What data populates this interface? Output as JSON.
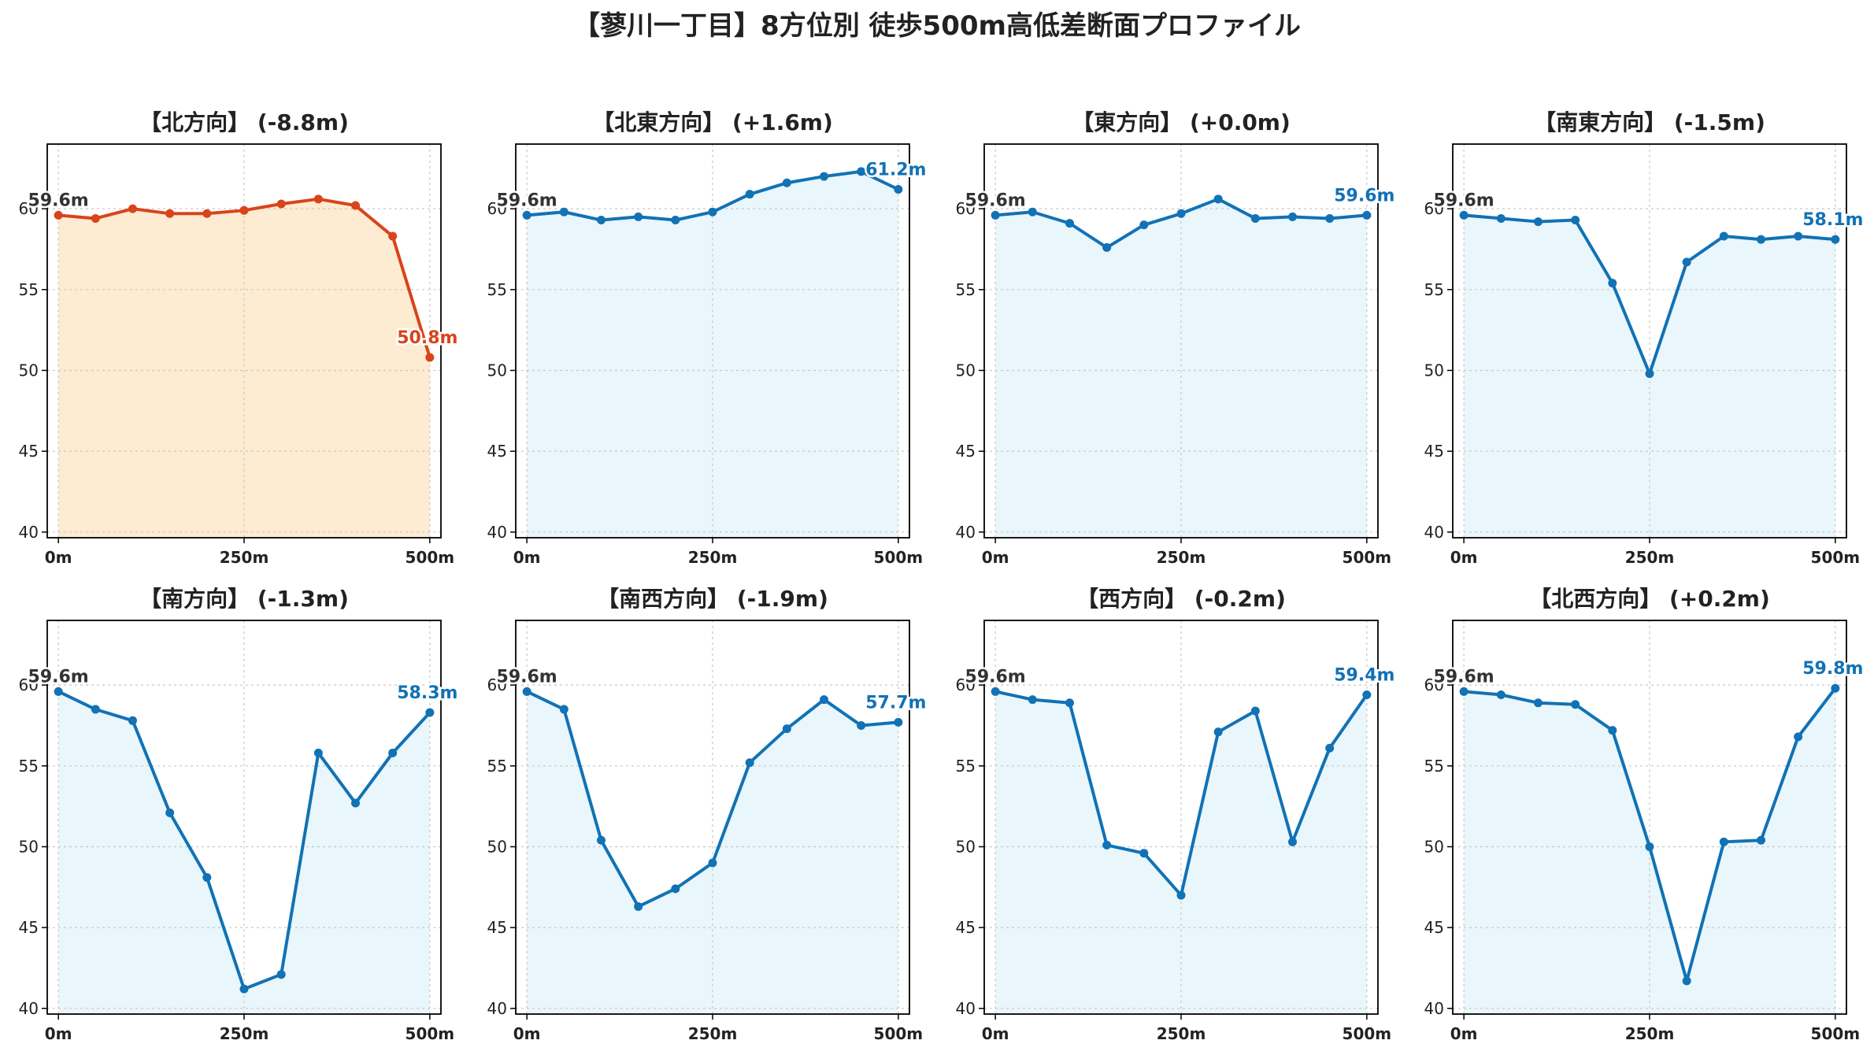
{
  "title": "【蓼川一丁目】8方位別 徒歩500m高低差断面プロファイル",
  "colors": {
    "highlight_line": "#d9441a",
    "highlight_fill": "#fdebd2",
    "normal_line": "#1172b5",
    "normal_fill": "#e9f6fc",
    "start_label": "#333333",
    "grid": "#c8c8c8"
  },
  "chart_data": [
    {
      "type": "area",
      "title": "【北方向】 (-8.8m)",
      "highlight": true,
      "x": [
        0,
        50,
        100,
        150,
        200,
        250,
        300,
        350,
        400,
        450,
        500
      ],
      "values": [
        59.6,
        59.4,
        60.0,
        59.7,
        59.7,
        59.9,
        60.3,
        60.6,
        60.2,
        58.3,
        50.8
      ],
      "start_label": "59.6m",
      "end_label": "50.8m",
      "xticks": [
        "0m",
        "250m",
        "500m"
      ],
      "ylim": [
        40,
        64
      ],
      "yticks": [
        "40",
        "45",
        "50",
        "55",
        "60"
      ],
      "grid": true
    },
    {
      "type": "area",
      "title": "【北東方向】 (+1.6m)",
      "highlight": false,
      "x": [
        0,
        50,
        100,
        150,
        200,
        250,
        300,
        350,
        400,
        450,
        500
      ],
      "values": [
        59.6,
        59.8,
        59.3,
        59.5,
        59.3,
        59.8,
        60.9,
        61.6,
        62.0,
        62.3,
        61.2
      ],
      "start_label": "59.6m",
      "end_label": "61.2m",
      "xticks": [
        "0m",
        "250m",
        "500m"
      ],
      "ylim": [
        40,
        64
      ],
      "yticks": [
        "40",
        "45",
        "50",
        "55",
        "60"
      ],
      "grid": true
    },
    {
      "type": "area",
      "title": "【東方向】 (+0.0m)",
      "highlight": false,
      "x": [
        0,
        50,
        100,
        150,
        200,
        250,
        300,
        350,
        400,
        450,
        500
      ],
      "values": [
        59.6,
        59.8,
        59.1,
        57.6,
        59.0,
        59.7,
        60.6,
        59.4,
        59.5,
        59.4,
        59.6
      ],
      "start_label": "59.6m",
      "end_label": "59.6m",
      "xticks": [
        "0m",
        "250m",
        "500m"
      ],
      "ylim": [
        40,
        64
      ],
      "yticks": [
        "40",
        "45",
        "50",
        "55",
        "60"
      ],
      "grid": true
    },
    {
      "type": "area",
      "title": "【南東方向】 (-1.5m)",
      "highlight": false,
      "x": [
        0,
        50,
        100,
        150,
        200,
        250,
        300,
        350,
        400,
        450,
        500
      ],
      "values": [
        59.6,
        59.4,
        59.2,
        59.3,
        55.4,
        49.8,
        56.7,
        58.3,
        58.1,
        58.3,
        58.1
      ],
      "start_label": "59.6m",
      "end_label": "58.1m",
      "xticks": [
        "0m",
        "250m",
        "500m"
      ],
      "ylim": [
        40,
        64
      ],
      "yticks": [
        "40",
        "45",
        "50",
        "55",
        "60"
      ],
      "grid": true
    },
    {
      "type": "area",
      "title": "【南方向】 (-1.3m)",
      "highlight": false,
      "x": [
        0,
        50,
        100,
        150,
        200,
        250,
        300,
        350,
        400,
        450,
        500
      ],
      "values": [
        59.6,
        58.5,
        57.8,
        52.1,
        48.1,
        41.2,
        42.1,
        55.8,
        52.7,
        55.8,
        58.3
      ],
      "start_label": "59.6m",
      "end_label": "58.3m",
      "xticks": [
        "0m",
        "250m",
        "500m"
      ],
      "ylim": [
        40,
        64
      ],
      "yticks": [
        "40",
        "45",
        "50",
        "55",
        "60"
      ],
      "grid": true
    },
    {
      "type": "area",
      "title": "【南西方向】 (-1.9m)",
      "highlight": false,
      "x": [
        0,
        50,
        100,
        150,
        200,
        250,
        300,
        350,
        400,
        450,
        500
      ],
      "values": [
        59.6,
        58.5,
        50.4,
        46.3,
        47.4,
        49.0,
        55.2,
        57.3,
        59.1,
        57.5,
        57.7
      ],
      "start_label": "59.6m",
      "end_label": "57.7m",
      "xticks": [
        "0m",
        "250m",
        "500m"
      ],
      "ylim": [
        40,
        64
      ],
      "yticks": [
        "40",
        "45",
        "50",
        "55",
        "60"
      ],
      "grid": true
    },
    {
      "type": "area",
      "title": "【西方向】 (-0.2m)",
      "highlight": false,
      "x": [
        0,
        50,
        100,
        150,
        200,
        250,
        300,
        350,
        400,
        450,
        500
      ],
      "values": [
        59.6,
        59.1,
        58.9,
        50.1,
        49.6,
        47.0,
        57.1,
        58.4,
        50.3,
        56.1,
        59.4
      ],
      "start_label": "59.6m",
      "end_label": "59.4m",
      "xticks": [
        "0m",
        "250m",
        "500m"
      ],
      "ylim": [
        40,
        64
      ],
      "yticks": [
        "40",
        "45",
        "50",
        "55",
        "60"
      ],
      "grid": true
    },
    {
      "type": "area",
      "title": "【北西方向】 (+0.2m)",
      "highlight": false,
      "x": [
        0,
        50,
        100,
        150,
        200,
        250,
        300,
        350,
        400,
        450,
        500
      ],
      "values": [
        59.6,
        59.4,
        58.9,
        58.8,
        57.2,
        50.0,
        41.7,
        50.3,
        50.4,
        56.8,
        59.8
      ],
      "start_label": "59.6m",
      "end_label": "59.8m",
      "xticks": [
        "0m",
        "250m",
        "500m"
      ],
      "ylim": [
        40,
        64
      ],
      "yticks": [
        "40",
        "45",
        "50",
        "55",
        "60"
      ],
      "grid": true
    }
  ]
}
